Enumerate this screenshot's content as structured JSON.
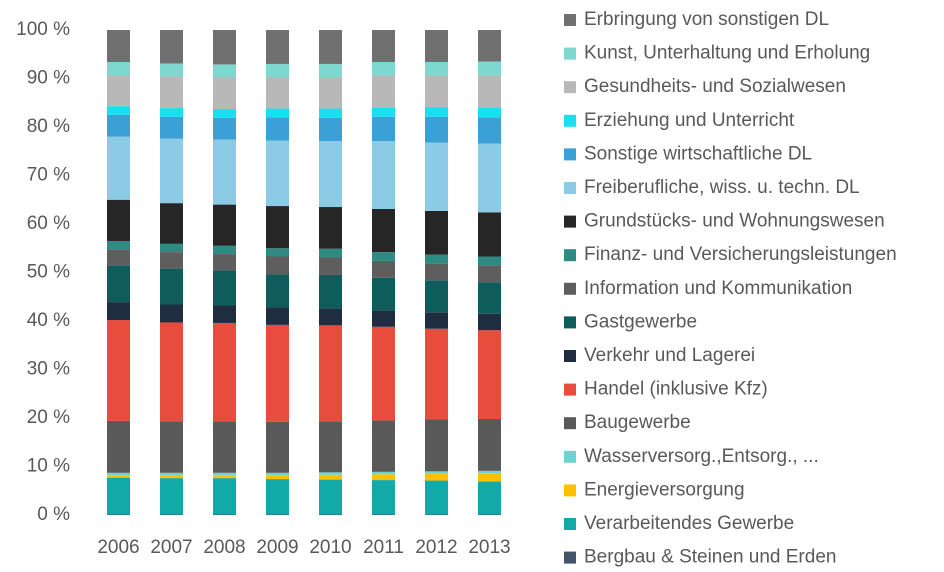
{
  "chart_data": {
    "type": "stacked_bar",
    "categories": [
      "2006",
      "2007",
      "2008",
      "2009",
      "2010",
      "2011",
      "2012",
      "2013"
    ],
    "ylim": [
      0,
      100
    ],
    "yticks": [
      {
        "value": 0,
        "label": "0 %"
      },
      {
        "value": 10,
        "label": "10 %"
      },
      {
        "value": 20,
        "label": "20 %"
      },
      {
        "value": 30,
        "label": "30 %"
      },
      {
        "value": 40,
        "label": "40 %"
      },
      {
        "value": 50,
        "label": "50 %"
      },
      {
        "value": 60,
        "label": "60 %"
      },
      {
        "value": 70,
        "label": "70 %"
      },
      {
        "value": 80,
        "label": "80 %"
      },
      {
        "value": 90,
        "label": "90 %"
      },
      {
        "value": 100,
        "label": "100 %"
      }
    ],
    "legend": "right",
    "series": [
      {
        "name": "Bergbau & Steinen und Erden",
        "color": "#44546a",
        "values": [
          0.1,
          0.1,
          0.1,
          0.1,
          0.1,
          0.1,
          0.1,
          0.1
        ]
      },
      {
        "name": "Verarbeitendes Gewerbe",
        "color": "#12a9a9",
        "values": [
          7.6,
          7.5,
          7.5,
          7.3,
          7.2,
          7.1,
          7.0,
          6.8
        ]
      },
      {
        "name": "Energieversorgung",
        "color": "#ffc000",
        "values": [
          0.5,
          0.6,
          0.6,
          0.8,
          1.0,
          1.2,
          1.4,
          1.7
        ]
      },
      {
        "name": "Wasserversorg.,Entsorg., ...",
        "color": "#6fd3cf",
        "values": [
          0.5,
          0.5,
          0.5,
          0.5,
          0.5,
          0.5,
          0.5,
          0.5
        ]
      },
      {
        "name": "Baugewerbe",
        "color": "#595959",
        "values": [
          10.7,
          10.6,
          10.6,
          10.5,
          10.5,
          10.6,
          10.7,
          10.7
        ]
      },
      {
        "name": "Handel (inklusive Kfz)",
        "color": "#e84c3d",
        "values": [
          20.8,
          20.4,
          20.3,
          20.0,
          19.8,
          19.3,
          18.7,
          18.3
        ]
      },
      {
        "name": "Verkehr und Lagerei",
        "color": "#1f2d40",
        "values": [
          3.7,
          3.7,
          3.6,
          3.6,
          3.5,
          3.4,
          3.4,
          3.4
        ]
      },
      {
        "name": "Gastgewerbe",
        "color": "#0e5c5c",
        "values": [
          7.6,
          7.4,
          7.2,
          6.8,
          6.9,
          6.7,
          6.6,
          6.5
        ]
      },
      {
        "name": "Information und Kommunikation",
        "color": "#5e5e5e",
        "values": [
          3.3,
          3.4,
          3.4,
          3.7,
          3.6,
          3.5,
          3.5,
          3.5
        ]
      },
      {
        "name": "Finanz- und Versicherungsleistungen",
        "color": "#2e8a83",
        "values": [
          1.7,
          1.7,
          1.7,
          1.7,
          1.8,
          1.8,
          1.8,
          1.8
        ]
      },
      {
        "name": "Grundstücks- und Wohnungswesen",
        "color": "#262626",
        "values": [
          8.5,
          8.4,
          8.5,
          8.7,
          8.6,
          8.9,
          9.0,
          9.1
        ]
      },
      {
        "name": "Freiberufliche, wiss. u. techn. DL",
        "color": "#8ccbe6",
        "values": [
          13.0,
          13.3,
          13.4,
          13.5,
          13.6,
          14.0,
          14.1,
          14.2
        ]
      },
      {
        "name": "Sonstige wirtschaftliche DL",
        "color": "#3aa0d6",
        "values": [
          4.5,
          4.5,
          4.5,
          4.8,
          4.8,
          5.0,
          5.3,
          5.4
        ]
      },
      {
        "name": "Erziehung und Unterricht",
        "color": "#19e0f0",
        "values": [
          1.8,
          1.8,
          1.8,
          1.8,
          1.9,
          1.9,
          2.0,
          2.0
        ]
      },
      {
        "name": "Gesundheits- und Sozialwesen",
        "color": "#b8b8b8",
        "values": [
          6.4,
          6.5,
          6.5,
          6.4,
          6.5,
          6.6,
          6.5,
          6.6
        ]
      },
      {
        "name": "Kunst, Unterhaltung und Erholung",
        "color": "#7fd8d0",
        "values": [
          2.7,
          2.7,
          2.7,
          2.8,
          2.7,
          2.8,
          2.8,
          2.9
        ]
      },
      {
        "name": "Erbringung von sonstigen DL",
        "color": "#707070",
        "values": [
          6.6,
          6.9,
          7.1,
          7.0,
          7.0,
          6.6,
          6.6,
          6.5
        ]
      }
    ]
  }
}
